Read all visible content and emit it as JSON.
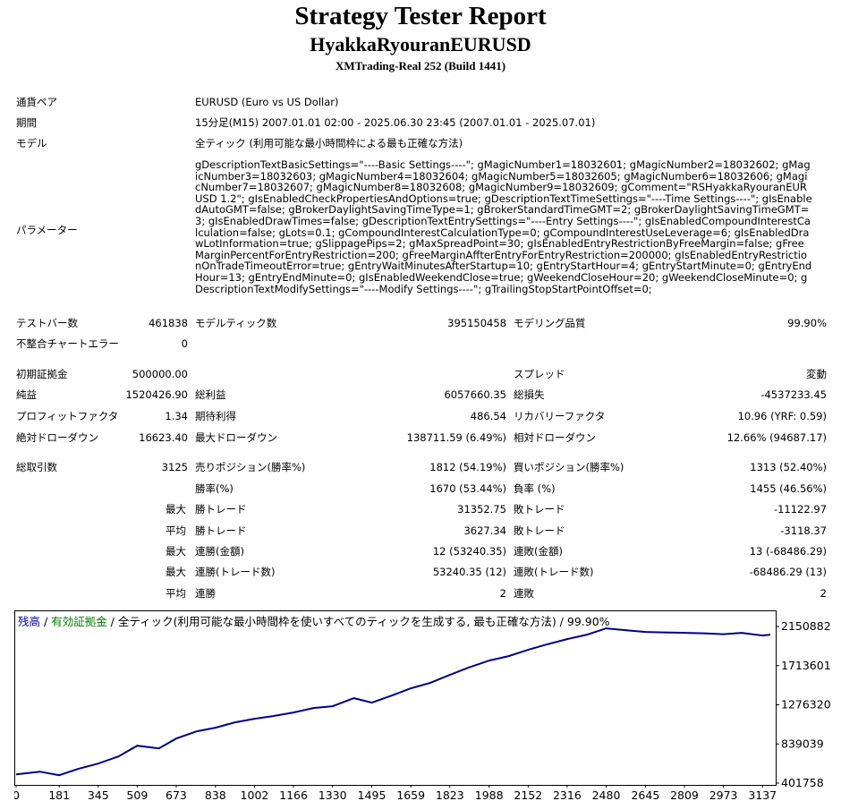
{
  "report": {
    "title": "Strategy Tester Report",
    "expert": "HyakkaRyouranEURUSD",
    "server": "XMTrading-Real 252 (Build 1441)"
  },
  "info": {
    "symbol_label": "通貨ペア",
    "symbol_value": "EURUSD (Euro vs US Dollar)",
    "period_label": "期間",
    "period_value": "15分足(M15) 2007.01.01 02:00 - 2025.06.30 23:45 (2007.01.01 - 2025.07.01)",
    "model_label": "モデル",
    "model_value": "全ティック (利用可能な最小時間枠による最も正確な方法)",
    "params_label": "パラメーター",
    "params_value": "gDescriptionTextBasicSettings=\"----Basic Settings----\"; gMagicNumber1=18032601; gMagicNumber2=18032602; gMagicNumber3=18032603; gMagicNumber4=18032604; gMagicNumber5=18032605; gMagicNumber6=18032606; gMagicNumber7=18032607; gMagicNumber8=18032608; gMagicNumber9=18032609; gComment=\"RSHyakkaRyouranEURUSD 1.2\"; gIsEnabledCheckPropertiesAndOptions=true; gDescriptionTextTimeSettings=\"----Time Settings----\"; gIsEnabledAutoGMT=false; gBrokerDaylightSavingTimeType=1; gBrokerStandardTimeGMT=2; gBrokerDaylightSavingTimeGMT=3; gIsEnabledDrawTimes=false; gDescriptionTextEntrySettings=\"----Entry Settings----\"; gIsEnabledCompoundInterestCalculation=false; gLots=0.1; gCompoundInterestCalculationType=0; gCompoundInterestUseLeverage=6; gIsEnabledDrawLotInformation=true; gSlippagePips=2; gMaxSpreadPoint=30; gIsEnabledEntryRestrictionByFreeMargin=false; gFreeMarginPercentForEntryRestriction=200; gFreeMarginAffterEntryForEntryRestriction=200000; gIsEnabledEntryRestrictionOnTradeTimeoutError=true; gEntryWaitMinutesAfterStartup=10; gEntryStartHour=4; gEntryStartMinute=0; gEntryEndHour=13; gEntryEndMinute=0; gIsEnabledWeekendClose=true; gWeekendCloseHour=20; gWeekendCloseMinute=0; gDescriptionTextModifySettings=\"----Modify Settings----\"; gTrailingStopStartPointOffset=0;"
  },
  "stats": {
    "bars_label": "テストバー数",
    "bars": "461838",
    "ticks_label": "モデルティック数",
    "ticks": "395150458",
    "quality_label": "モデリング品質",
    "quality": "99.90%",
    "mismatch_label": "不整合チャートエラー",
    "mismatch": "0",
    "deposit_label": "初期証拠金",
    "deposit": "500000.00",
    "spread_label": "スプレッド",
    "spread": "変動",
    "net_label": "純益",
    "net": "1520426.90",
    "gross_profit_label": "総利益",
    "gross_profit": "6057660.35",
    "gross_loss_label": "総損失",
    "gross_loss": "-4537233.45",
    "pf_label": "プロフィットファクタ",
    "pf": "1.34",
    "expected_label": "期待利得",
    "expected": "486.54",
    "recovery_label": "リカバリーファクタ",
    "recovery": "10.96 (YRF: 0.59)",
    "abs_dd_label": "絶対ドローダウン",
    "abs_dd": "16623.40",
    "max_dd_label": "最大ドローダウン",
    "max_dd": "138711.59 (6.49%)",
    "rel_dd_label": "相対ドローダウン",
    "rel_dd": "12.66% (94687.17)",
    "total_trades_label": "総取引数",
    "total_trades": "3125",
    "short_label": "売りポジション(勝率%)",
    "short": "1812 (54.19%)",
    "long_label": "買いポジション(勝率%)",
    "long": "1313 (52.40%)",
    "win_rate_label": "勝率(%)",
    "win_rate": "1670 (53.44%)",
    "loss_rate_label": "負率 (%)",
    "loss_rate": "1455 (46.56%)",
    "max1": "最大",
    "max_win_label": "勝トレード",
    "max_win": "31352.75",
    "max_loss_label": "敗トレード",
    "max_loss": "-11122.97",
    "avg1": "平均",
    "avg_win_label": "勝トレード",
    "avg_win": "3627.34",
    "avg_loss_label": "敗トレード",
    "avg_loss": "-3118.37",
    "max2": "最大",
    "cons_win_money_label": "連勝(金額)",
    "cons_win_money": "12 (53240.35)",
    "cons_loss_money_label": "連敗(金額)",
    "cons_loss_money": "13 (-68486.29)",
    "max3": "最大",
    "cons_win_count_label": "連勝(トレード数)",
    "cons_win_count": "53240.35 (12)",
    "cons_loss_count_label": "連敗(トレード数)",
    "cons_loss_count": "-68486.29 (13)",
    "avg2": "平均",
    "avg_cons_win_label": "連勝",
    "avg_cons_win": "2",
    "avg_cons_loss_label": "連敗",
    "avg_cons_loss": "2"
  },
  "legend": {
    "balance": "残高",
    "sep1": " / ",
    "equity": "有効証拠金",
    "sep2": " / ",
    "description": "全ティック(利用可能な最小時間枠を使いすべてのティックを生成する, 最も正確な方法) / 99.90%"
  },
  "chart_data": {
    "type": "line",
    "series": [
      {
        "name": "残高",
        "color": "#00008b",
        "x": [
          0,
          100,
          181,
          260,
          345,
          430,
          509,
          600,
          673,
          760,
          838,
          920,
          1002,
          1080,
          1166,
          1250,
          1330,
          1420,
          1495,
          1580,
          1659,
          1740,
          1823,
          1900,
          1988,
          2070,
          2152,
          2230,
          2316,
          2400,
          2480,
          2560,
          2645,
          2720,
          2809,
          2890,
          2973,
          3050,
          3137,
          3170
        ],
        "y": [
          500000,
          530000,
          490000,
          560000,
          620000,
          700000,
          820000,
          790000,
          900000,
          980000,
          1020000,
          1080000,
          1120000,
          1150000,
          1190000,
          1240000,
          1260000,
          1350000,
          1300000,
          1380000,
          1460000,
          1520000,
          1610000,
          1690000,
          1770000,
          1820000,
          1890000,
          1950000,
          2010000,
          2060000,
          2130000,
          2110000,
          2090000,
          2085000,
          2080000,
          2075000,
          2065000,
          2080000,
          2050000,
          2060000
        ]
      }
    ],
    "y_ticks": [
      "2150882",
      "1713601",
      "1276320",
      "839039",
      "401758"
    ],
    "x_ticks": [
      "0",
      "181",
      "345",
      "509",
      "673",
      "838",
      "1002",
      "1166",
      "1330",
      "1495",
      "1659",
      "1823",
      "1988",
      "2152",
      "2316",
      "2480",
      "2645",
      "2809",
      "2973",
      "3137"
    ],
    "ylim": [
      401758,
      2150882
    ],
    "xlim": [
      0,
      3170
    ]
  }
}
